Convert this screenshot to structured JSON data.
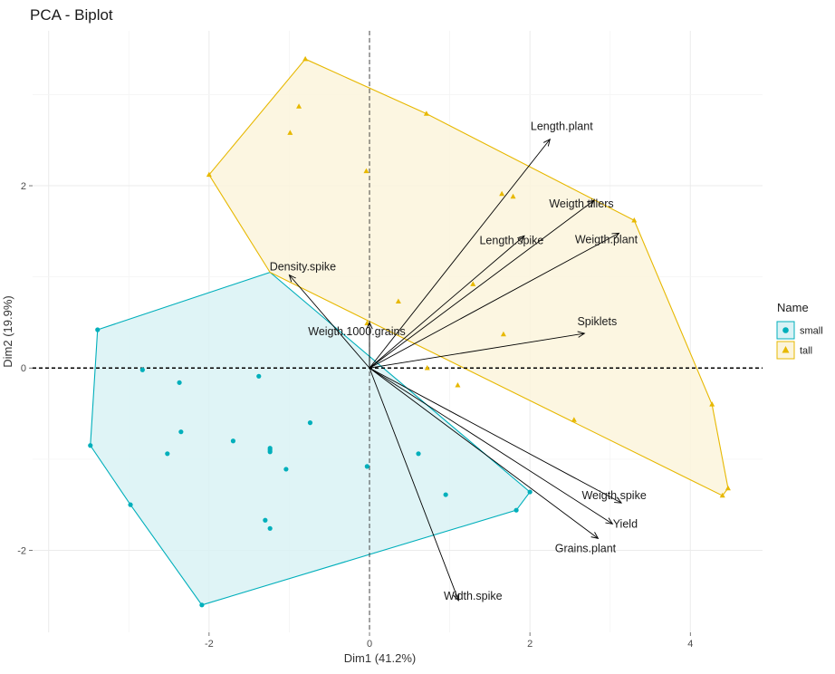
{
  "chart_data": {
    "type": "scatter",
    "title": "PCA - Biplot",
    "xlabel": "Dim1 (41.2%)",
    "ylabel": "Dim2 (19.9%)",
    "xlim": [
      -4.2,
      4.9
    ],
    "ylim": [
      -2.9,
      3.7
    ],
    "xticks": [
      -2,
      0,
      2,
      4
    ],
    "xtick_labels": [
      "-2",
      "0",
      "2",
      "4"
    ],
    "yticks": [
      -2,
      0,
      2
    ],
    "ytick_labels": [
      "-2",
      "0",
      "2"
    ],
    "grid": true,
    "legend": {
      "title": "Name",
      "position": "right",
      "entries": [
        {
          "label": "small",
          "shape": "circle",
          "color": "#00AFBB"
        },
        {
          "label": "tall",
          "shape": "triangle",
          "color": "#E7B800"
        }
      ]
    },
    "groups": [
      {
        "name": "small",
        "shape": "circle",
        "color": "#00AFBB",
        "fill": "#d9f2f5",
        "points": [
          [
            -3.39,
            0.42
          ],
          [
            -2.83,
            -0.02
          ],
          [
            -2.37,
            -0.16
          ],
          [
            -2.35,
            -0.7
          ],
          [
            -2.52,
            -0.94
          ],
          [
            -1.7,
            -0.8
          ],
          [
            -1.38,
            -0.09
          ],
          [
            -1.24,
            -0.88
          ],
          [
            -1.24,
            -0.9
          ],
          [
            -1.24,
            -0.92
          ],
          [
            -0.74,
            -0.6
          ],
          [
            -1.04,
            -1.11
          ],
          [
            -1.3,
            -1.67
          ],
          [
            -1.24,
            -1.76
          ],
          [
            -2.98,
            -1.5
          ],
          [
            -3.48,
            -0.85
          ],
          [
            -2.09,
            -2.6
          ],
          [
            -0.03,
            -1.08
          ],
          [
            0.61,
            -0.94
          ],
          [
            0.95,
            -1.39
          ],
          [
            1.83,
            -1.56
          ],
          [
            2.0,
            -1.36
          ]
        ],
        "hull": [
          [
            -3.39,
            0.42
          ],
          [
            -1.24,
            1.05
          ],
          [
            2.0,
            -1.36
          ],
          [
            1.83,
            -1.56
          ],
          [
            -2.09,
            -2.6
          ],
          [
            -2.98,
            -1.5
          ],
          [
            -3.48,
            -0.85
          ]
        ]
      },
      {
        "name": "tall",
        "shape": "triangle",
        "color": "#E7B800",
        "fill": "#fbf4dc",
        "points": [
          [
            -0.8,
            3.39
          ],
          [
            -0.88,
            2.87
          ],
          [
            -0.99,
            2.58
          ],
          [
            -2.0,
            2.12
          ],
          [
            -0.04,
            2.16
          ],
          [
            0.71,
            2.79
          ],
          [
            1.65,
            1.91
          ],
          [
            1.79,
            1.88
          ],
          [
            3.3,
            1.62
          ],
          [
            0.36,
            0.73
          ],
          [
            1.29,
            0.92
          ],
          [
            1.67,
            0.37
          ],
          [
            0.72,
            0.0
          ],
          [
            1.1,
            -0.19
          ],
          [
            2.55,
            -0.57
          ],
          [
            4.27,
            -0.4
          ],
          [
            4.47,
            -1.32
          ],
          [
            4.4,
            -1.4
          ],
          [
            -0.03,
            0.49
          ]
        ],
        "hull": [
          [
            -0.8,
            3.39
          ],
          [
            0.71,
            2.79
          ],
          [
            3.3,
            1.62
          ],
          [
            4.27,
            -0.4
          ],
          [
            4.47,
            -1.32
          ],
          [
            4.4,
            -1.4
          ],
          [
            -1.24,
            1.05
          ],
          [
            -2.0,
            2.12
          ]
        ]
      }
    ],
    "variables": [
      {
        "name": "Length.plant",
        "x": 2.25,
        "y": 2.51
      },
      {
        "name": "Weigth.tillers",
        "x": 2.8,
        "y": 1.84
      },
      {
        "name": "Length.spike",
        "x": 1.93,
        "y": 1.45
      },
      {
        "name": "Weigth.plant",
        "x": 3.11,
        "y": 1.48
      },
      {
        "name": "Density.spike",
        "x": -1.0,
        "y": 1.02
      },
      {
        "name": "Weigth.1000.grains",
        "x": 0.0,
        "y": 0.5
      },
      {
        "name": "Spiklets",
        "x": 2.68,
        "y": 0.38
      },
      {
        "name": "Weigth.spike",
        "x": 3.14,
        "y": -1.48
      },
      {
        "name": "Yield",
        "x": 3.03,
        "y": -1.71
      },
      {
        "name": "Grains.plant",
        "x": 2.85,
        "y": -1.87
      },
      {
        "name": "Width.spike",
        "x": 1.11,
        "y": -2.55
      }
    ]
  }
}
